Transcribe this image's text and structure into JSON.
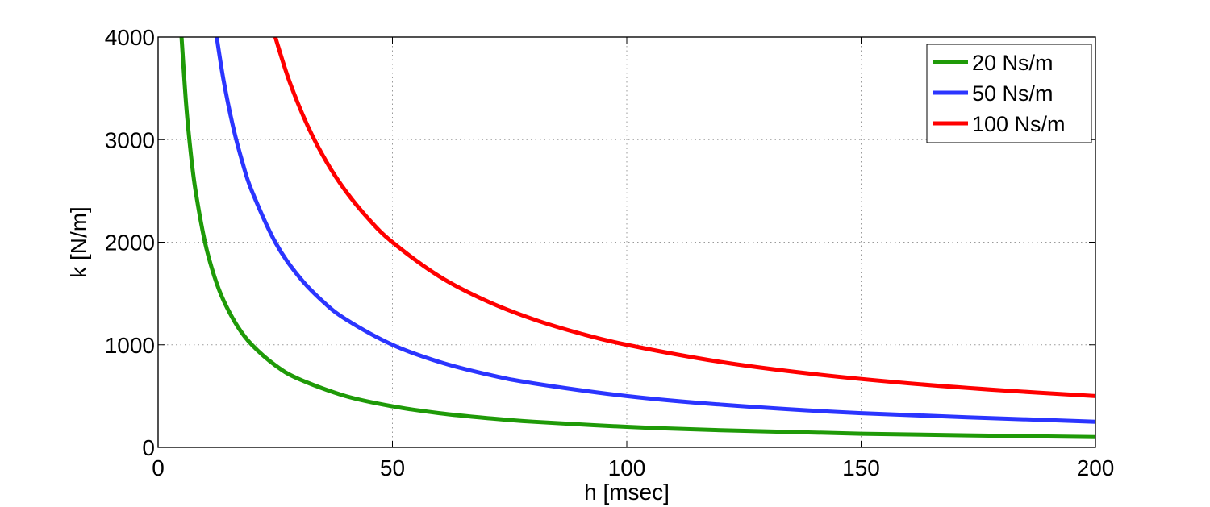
{
  "chart_data": {
    "type": "line",
    "title": "",
    "xlabel": "h [msec]",
    "ylabel": "k [N/m]",
    "xlim": [
      0,
      200
    ],
    "ylim": [
      0,
      4000
    ],
    "xticks": [
      0,
      50,
      100,
      150,
      200
    ],
    "yticks": [
      0,
      1000,
      2000,
      3000,
      4000
    ],
    "xtick_labels": [
      "0",
      "50",
      "100",
      "150",
      "200"
    ],
    "ytick_labels": [
      "0",
      "1000",
      "2000",
      "3000",
      "4000"
    ],
    "grid": true,
    "legend_position": "top-right",
    "series": [
      {
        "name": "20 Ns/m",
        "color": "#1f9a08",
        "x": [
          5,
          6,
          7,
          8,
          10,
          12,
          14,
          17,
          20,
          25,
          30,
          40,
          50,
          60,
          70,
          80,
          100,
          120,
          150,
          200
        ],
        "y": [
          4000,
          3333,
          2857,
          2500,
          2000,
          1667,
          1429,
          1176,
          1000,
          800,
          667,
          500,
          400,
          333,
          286,
          250,
          200,
          167,
          133,
          100
        ]
      },
      {
        "name": "50 Ns/m",
        "color": "#2b35ff",
        "x": [
          12.5,
          14,
          16,
          18,
          20,
          25,
          30,
          35,
          40,
          50,
          60,
          70,
          80,
          100,
          120,
          150,
          200
        ],
        "y": [
          4000,
          3571,
          3125,
          2778,
          2500,
          2000,
          1667,
          1429,
          1250,
          1000,
          833,
          714,
          625,
          500,
          417,
          333,
          250
        ]
      },
      {
        "name": "100 Ns/m",
        "color": "#ff0000",
        "x": [
          25,
          28,
          32,
          36,
          40,
          45,
          50,
          60,
          70,
          80,
          90,
          100,
          120,
          140,
          160,
          180,
          200
        ],
        "y": [
          4000,
          3571,
          3125,
          2778,
          2500,
          2222,
          2000,
          1667,
          1429,
          1250,
          1111,
          1000,
          833,
          714,
          625,
          556,
          500
        ]
      }
    ]
  }
}
